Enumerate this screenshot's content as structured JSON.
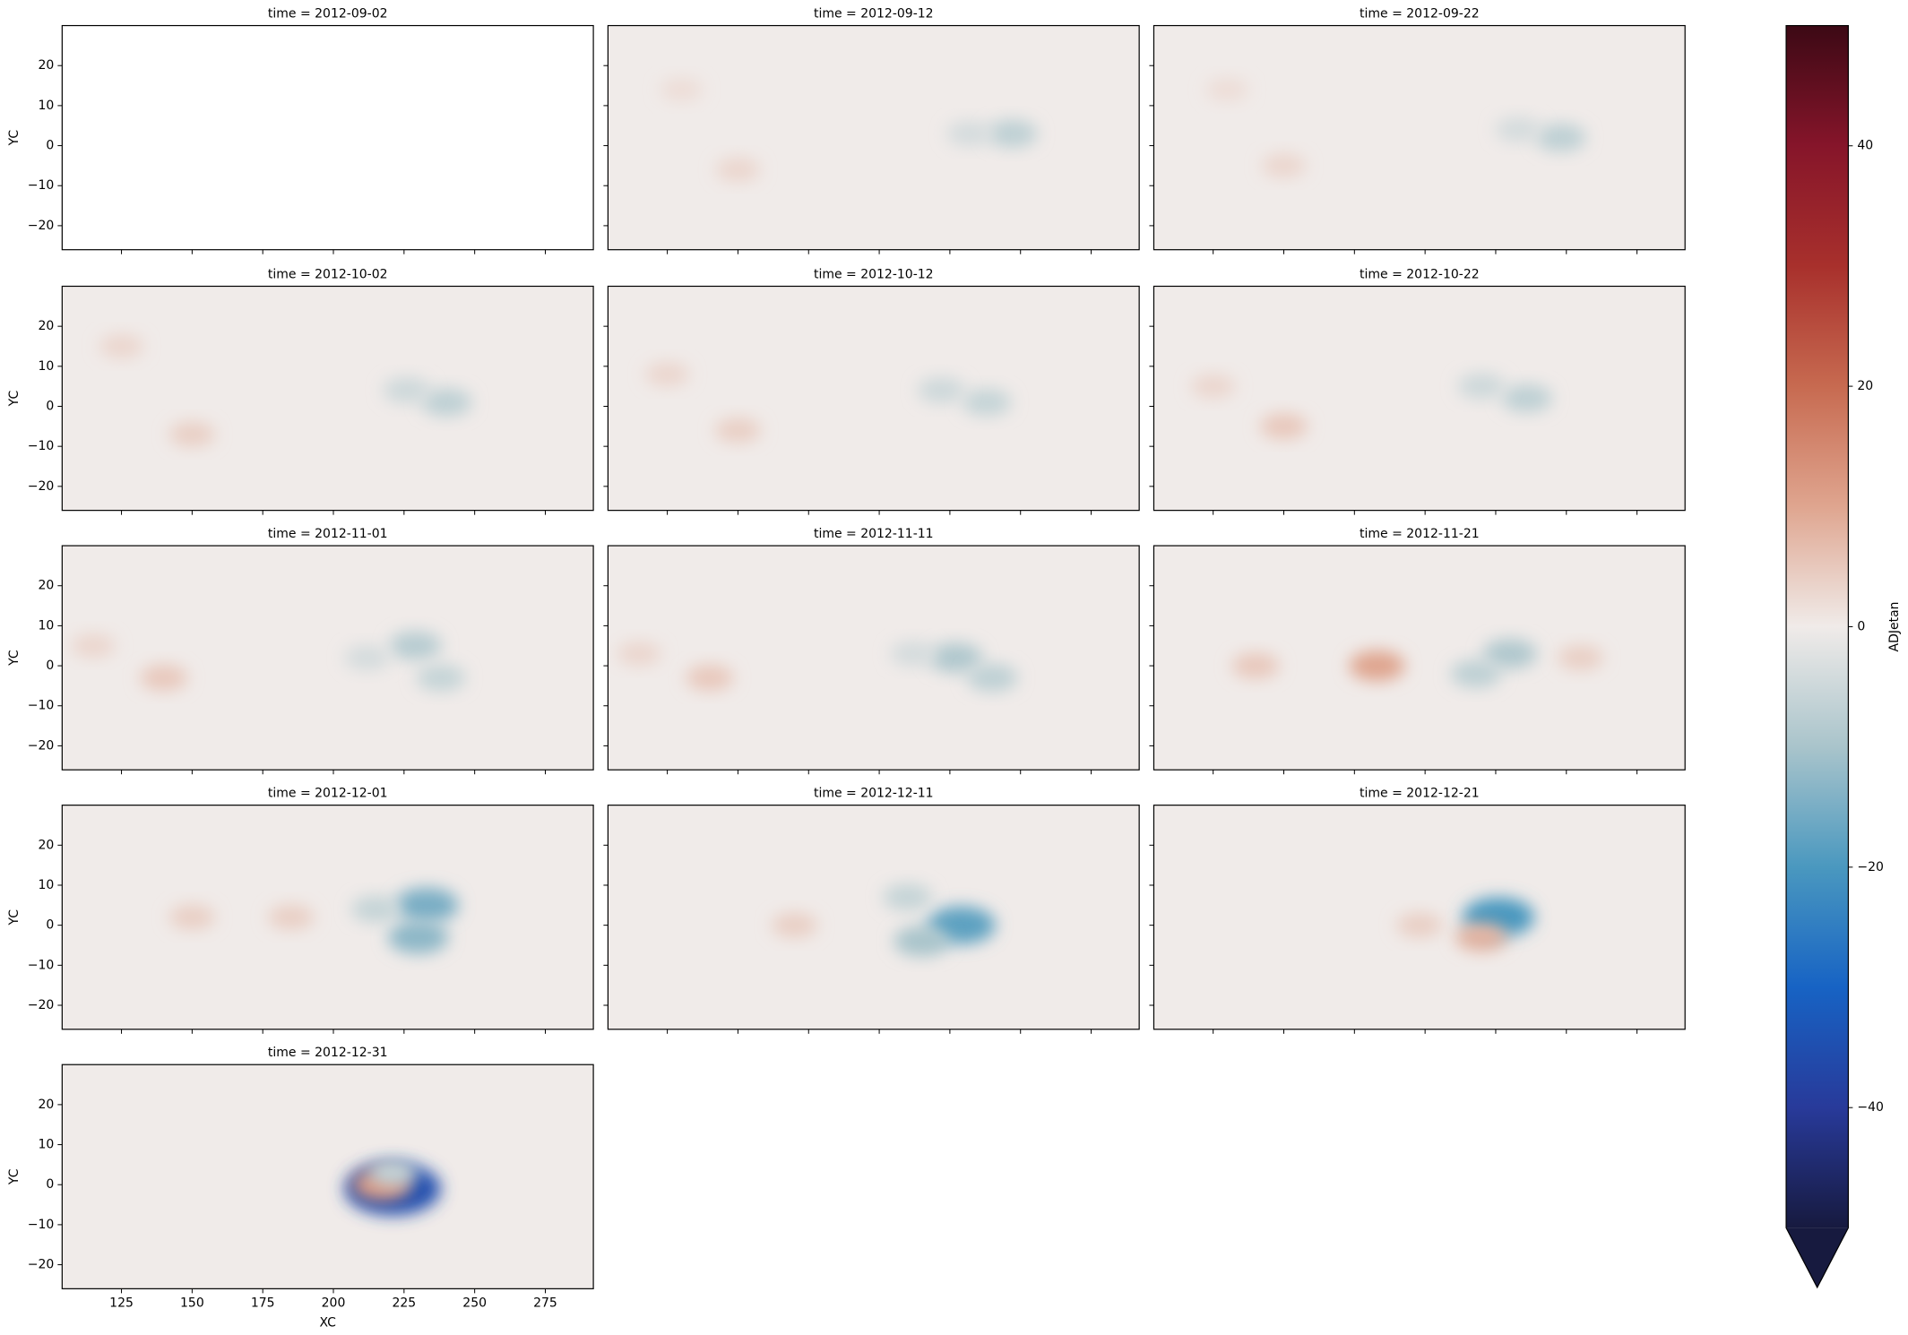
{
  "chart_data": {
    "type": "heatmap",
    "xlabel": "XC",
    "ylabel": "YC",
    "xlim": [
      104,
      292
    ],
    "ylim": [
      -26,
      30
    ],
    "xticks": [
      125,
      150,
      175,
      200,
      225,
      250,
      275
    ],
    "yticks": [
      {
        "value": -20,
        "label": "−20"
      },
      {
        "value": -10,
        "label": "−10"
      },
      0,
      10,
      20
    ],
    "colorbar": {
      "label": "ADJetan",
      "clim": [
        -50,
        50
      ],
      "ticks": [
        {
          "value": -40,
          "label": "−40"
        },
        {
          "value": -20,
          "label": "−20"
        },
        0,
        20,
        40
      ],
      "extend": "min",
      "colormap": [
        "#171a3f",
        "#283a9a",
        "#1763c4",
        "#4a98bf",
        "#a9c4cb",
        "#f0ebe9",
        "#dfa58f",
        "#c76a50",
        "#a8302c",
        "#86152a",
        "#3c0915"
      ]
    },
    "facets": [
      {
        "title": "time = 2012-09-02",
        "background": null,
        "features": []
      },
      {
        "title": "time = 2012-09-12",
        "background": 0,
        "features": [
          {
            "x": 150,
            "y": -6,
            "value": 3
          },
          {
            "x": 130,
            "y": 14,
            "value": 2
          },
          {
            "x": 247,
            "y": 3,
            "value": -7
          },
          {
            "x": 232,
            "y": 3,
            "value": -4
          }
        ]
      },
      {
        "title": "time = 2012-09-22",
        "background": 0,
        "features": [
          {
            "x": 150,
            "y": -5,
            "value": 3
          },
          {
            "x": 130,
            "y": 14,
            "value": 2
          },
          {
            "x": 248,
            "y": 2,
            "value": -7
          },
          {
            "x": 233,
            "y": 4,
            "value": -4
          }
        ]
      },
      {
        "title": "time = 2012-10-02",
        "background": 0,
        "features": [
          {
            "x": 150,
            "y": -7,
            "value": 4
          },
          {
            "x": 125,
            "y": 15,
            "value": 3
          },
          {
            "x": 240,
            "y": 1,
            "value": -7
          },
          {
            "x": 226,
            "y": 4,
            "value": -5
          }
        ]
      },
      {
        "title": "time = 2012-10-12",
        "background": 0,
        "features": [
          {
            "x": 150,
            "y": -6,
            "value": 4
          },
          {
            "x": 125,
            "y": 8,
            "value": 3
          },
          {
            "x": 238,
            "y": 1,
            "value": -6
          },
          {
            "x": 222,
            "y": 4,
            "value": -5
          }
        ]
      },
      {
        "title": "time = 2012-10-22",
        "background": 0,
        "features": [
          {
            "x": 150,
            "y": -5,
            "value": 5
          },
          {
            "x": 125,
            "y": 5,
            "value": 3
          },
          {
            "x": 236,
            "y": 2,
            "value": -7
          },
          {
            "x": 220,
            "y": 5,
            "value": -5
          }
        ]
      },
      {
        "title": "time = 2012-11-01",
        "background": 0,
        "features": [
          {
            "x": 140,
            "y": -3,
            "value": 5
          },
          {
            "x": 115,
            "y": 5,
            "value": 3
          },
          {
            "x": 229,
            "y": 5,
            "value": -8
          },
          {
            "x": 238,
            "y": -3,
            "value": -6
          },
          {
            "x": 212,
            "y": 2,
            "value": -4
          }
        ]
      },
      {
        "title": "time = 2012-11-11",
        "background": 0,
        "features": [
          {
            "x": 140,
            "y": -3,
            "value": 5
          },
          {
            "x": 115,
            "y": 3,
            "value": 3
          },
          {
            "x": 227,
            "y": 2,
            "value": -9
          },
          {
            "x": 240,
            "y": -3,
            "value": -7
          },
          {
            "x": 212,
            "y": 3,
            "value": -4
          }
        ]
      },
      {
        "title": "time = 2012-11-21",
        "background": 0,
        "features": [
          {
            "x": 140,
            "y": 0,
            "value": 5
          },
          {
            "x": 183,
            "y": 0,
            "value": 10
          },
          {
            "x": 230,
            "y": 3,
            "value": -9
          },
          {
            "x": 218,
            "y": -2,
            "value": -7
          },
          {
            "x": 255,
            "y": 2,
            "value": 4
          }
        ]
      },
      {
        "title": "time = 2012-12-01",
        "background": 0,
        "features": [
          {
            "x": 150,
            "y": 2,
            "value": 4
          },
          {
            "x": 185,
            "y": 2,
            "value": 4
          },
          {
            "x": 233,
            "y": 5,
            "value": -15
          },
          {
            "x": 230,
            "y": -3,
            "value": -13
          },
          {
            "x": 215,
            "y": 4,
            "value": -6
          }
        ]
      },
      {
        "title": "time = 2012-12-11",
        "background": 0,
        "features": [
          {
            "x": 170,
            "y": 0,
            "value": 4
          },
          {
            "x": 229,
            "y": 0,
            "value": -18
          },
          {
            "x": 215,
            "y": -4,
            "value": -10
          },
          {
            "x": 210,
            "y": 7,
            "value": -6
          }
        ]
      },
      {
        "title": "time = 2012-12-21",
        "background": 0,
        "features": [
          {
            "x": 198,
            "y": 0,
            "value": 4
          },
          {
            "x": 226,
            "y": 2,
            "value": -20
          },
          {
            "x": 220,
            "y": -3,
            "value": 8
          }
        ]
      },
      {
        "title": "time = 2012-12-31",
        "background": 0,
        "features": [
          {
            "x": 221,
            "y": -1,
            "value": -35
          },
          {
            "x": 217,
            "y": 0,
            "value": 12
          },
          {
            "x": 221,
            "y": 3,
            "value": -6
          }
        ]
      }
    ]
  }
}
